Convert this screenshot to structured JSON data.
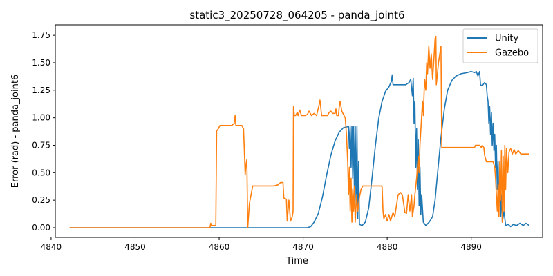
{
  "chart_data": {
    "type": "line",
    "title": "static3_20250728_064205 - panda_joint6",
    "xlabel": "Time",
    "ylabel": "Error (rad) - panda_joint6",
    "xlim": [
      4840.5,
      4898.5
    ],
    "ylim": [
      -0.088,
      1.845
    ],
    "xticks": [
      4840,
      4850,
      4860,
      4870,
      4880,
      4890
    ],
    "xtick_labels": [
      "4840",
      "4850",
      "4860",
      "4870",
      "4880",
      "4890"
    ],
    "yticks": [
      0.0,
      0.25,
      0.5,
      0.75,
      1.0,
      1.25,
      1.5,
      1.75
    ],
    "ytick_labels": [
      "0.00",
      "0.25",
      "0.50",
      "0.75",
      "1.00",
      "1.25",
      "1.50",
      "1.75"
    ],
    "legend_position": "top-right",
    "grid": false,
    "series": [
      {
        "name": "Unity",
        "color": "#1f77b4",
        "points": [
          [
            4842.2,
            0.0
          ],
          [
            4859.0,
            0.0
          ],
          [
            4865.0,
            0.0
          ],
          [
            4870.5,
            0.0
          ],
          [
            4870.9,
            0.01
          ],
          [
            4871.3,
            0.05
          ],
          [
            4871.8,
            0.13
          ],
          [
            4872.3,
            0.28
          ],
          [
            4872.8,
            0.48
          ],
          [
            4873.3,
            0.66
          ],
          [
            4873.8,
            0.79
          ],
          [
            4874.3,
            0.87
          ],
          [
            4874.8,
            0.91
          ],
          [
            4875.4,
            0.92
          ],
          [
            4875.5,
            0.72
          ],
          [
            4875.6,
            0.92
          ],
          [
            4875.7,
            0.55
          ],
          [
            4875.8,
            0.92
          ],
          [
            4875.9,
            0.45
          ],
          [
            4876.0,
            0.92
          ],
          [
            4876.1,
            0.32
          ],
          [
            4876.2,
            0.92
          ],
          [
            4876.3,
            0.2
          ],
          [
            4876.4,
            0.92
          ],
          [
            4876.5,
            0.08
          ],
          [
            4876.6,
            0.6
          ],
          [
            4876.7,
            0.03
          ],
          [
            4877.0,
            0.02
          ],
          [
            4877.4,
            0.05
          ],
          [
            4877.8,
            0.18
          ],
          [
            4878.2,
            0.45
          ],
          [
            4878.6,
            0.75
          ],
          [
            4879.0,
            1.0
          ],
          [
            4879.4,
            1.15
          ],
          [
            4879.8,
            1.24
          ],
          [
            4880.2,
            1.28
          ],
          [
            4880.5,
            1.33
          ],
          [
            4880.6,
            1.39
          ],
          [
            4880.7,
            1.3
          ],
          [
            4881.5,
            1.3
          ],
          [
            4882.2,
            1.3
          ],
          [
            4882.6,
            1.32
          ],
          [
            4882.8,
            1.35
          ],
          [
            4883.0,
            1.2
          ],
          [
            4883.1,
            1.36
          ],
          [
            4883.2,
            0.95
          ],
          [
            4883.3,
            1.15
          ],
          [
            4883.4,
            0.55
          ],
          [
            4883.5,
            0.9
          ],
          [
            4883.6,
            0.35
          ],
          [
            4883.7,
            0.8
          ],
          [
            4883.8,
            0.2
          ],
          [
            4883.9,
            0.55
          ],
          [
            4884.0,
            0.12
          ],
          [
            4884.1,
            0.3
          ],
          [
            4884.3,
            0.05
          ],
          [
            4884.6,
            0.02
          ],
          [
            4885.0,
            0.05
          ],
          [
            4885.4,
            0.1
          ],
          [
            4885.7,
            0.25
          ],
          [
            4886.0,
            0.5
          ],
          [
            4886.4,
            0.82
          ],
          [
            4886.8,
            1.08
          ],
          [
            4887.2,
            1.25
          ],
          [
            4887.7,
            1.34
          ],
          [
            4888.2,
            1.38
          ],
          [
            4888.8,
            1.4
          ],
          [
            4889.5,
            1.41
          ],
          [
            4890.0,
            1.42
          ],
          [
            4890.4,
            1.41
          ],
          [
            4890.6,
            1.42
          ],
          [
            4890.8,
            1.38
          ],
          [
            4891.0,
            1.42
          ],
          [
            4891.1,
            1.3
          ],
          [
            4891.3,
            1.29
          ],
          [
            4891.6,
            1.32
          ],
          [
            4891.8,
            1.3
          ],
          [
            4891.9,
            1.2
          ],
          [
            4892.0,
            1.15
          ],
          [
            4892.1,
            0.95
          ],
          [
            4892.2,
            1.1
          ],
          [
            4892.3,
            0.85
          ],
          [
            4892.4,
            1.05
          ],
          [
            4892.5,
            0.75
          ],
          [
            4892.6,
            0.95
          ],
          [
            4892.7,
            0.7
          ],
          [
            4892.8,
            0.85
          ],
          [
            4892.9,
            0.55
          ],
          [
            4893.0,
            0.75
          ],
          [
            4893.1,
            0.35
          ],
          [
            4893.2,
            0.6
          ],
          [
            4893.3,
            0.2
          ],
          [
            4893.4,
            0.45
          ],
          [
            4893.5,
            0.1
          ],
          [
            4893.6,
            0.3
          ],
          [
            4893.7,
            0.05
          ],
          [
            4893.9,
            0.15
          ],
          [
            4894.1,
            0.02
          ],
          [
            4894.4,
            0.03
          ],
          [
            4894.7,
            0.01
          ],
          [
            4895.0,
            0.03
          ],
          [
            4895.4,
            0.02
          ],
          [
            4895.8,
            0.04
          ],
          [
            4896.2,
            0.02
          ],
          [
            4896.5,
            0.04
          ],
          [
            4896.9,
            0.02
          ]
        ]
      },
      {
        "name": "Gazebo",
        "color": "#ff7f0e",
        "points": [
          [
            4842.2,
            0.0
          ],
          [
            4858.9,
            0.0
          ],
          [
            4859.0,
            0.04
          ],
          [
            4859.1,
            0.02
          ],
          [
            4859.6,
            0.02
          ],
          [
            4859.7,
            0.88
          ],
          [
            4859.9,
            0.9
          ],
          [
            4860.1,
            0.93
          ],
          [
            4861.5,
            0.93
          ],
          [
            4861.8,
            0.95
          ],
          [
            4861.9,
            1.02
          ],
          [
            4862.0,
            0.93
          ],
          [
            4862.7,
            0.93
          ],
          [
            4862.9,
            0.9
          ],
          [
            4863.0,
            0.7
          ],
          [
            4863.1,
            0.48
          ],
          [
            4863.2,
            0.58
          ],
          [
            4863.3,
            0.62
          ],
          [
            4863.4,
            0.0
          ],
          [
            4863.6,
            0.22
          ],
          [
            4863.8,
            0.3
          ],
          [
            4864.0,
            0.38
          ],
          [
            4866.5,
            0.38
          ],
          [
            4867.0,
            0.39
          ],
          [
            4867.3,
            0.41
          ],
          [
            4867.6,
            0.41
          ],
          [
            4867.7,
            0.27
          ],
          [
            4868.0,
            0.26
          ],
          [
            4868.1,
            0.06
          ],
          [
            4868.3,
            0.25
          ],
          [
            4868.5,
            0.06
          ],
          [
            4868.7,
            0.1
          ],
          [
            4868.8,
            0.15
          ],
          [
            4868.85,
            1.1
          ],
          [
            4868.95,
            1.02
          ],
          [
            4869.1,
            1.02
          ],
          [
            4869.3,
            1.05
          ],
          [
            4869.4,
            1.02
          ],
          [
            4869.6,
            1.07
          ],
          [
            4869.8,
            1.02
          ],
          [
            4870.2,
            1.02
          ],
          [
            4870.5,
            1.03
          ],
          [
            4870.7,
            1.06
          ],
          [
            4871.0,
            1.02
          ],
          [
            4871.3,
            1.04
          ],
          [
            4871.6,
            1.02
          ],
          [
            4871.9,
            1.12
          ],
          [
            4872.0,
            1.16
          ],
          [
            4872.2,
            1.02
          ],
          [
            4872.9,
            1.02
          ],
          [
            4873.1,
            1.05
          ],
          [
            4873.3,
            1.06
          ],
          [
            4873.5,
            1.04
          ],
          [
            4873.8,
            1.04
          ],
          [
            4873.9,
            1.08
          ],
          [
            4874.0,
            1.02
          ],
          [
            4874.2,
            1.02
          ],
          [
            4874.3,
            1.1
          ],
          [
            4874.4,
            1.15
          ],
          [
            4874.6,
            1.06
          ],
          [
            4874.8,
            1.03
          ],
          [
            4875.0,
            1.0
          ],
          [
            4875.15,
            0.85
          ],
          [
            4875.3,
            0.6
          ],
          [
            4875.4,
            0.3
          ],
          [
            4875.5,
            0.55
          ],
          [
            4875.6,
            0.15
          ],
          [
            4875.7,
            0.45
          ],
          [
            4875.8,
            0.05
          ],
          [
            4875.9,
            0.35
          ],
          [
            4876.0,
            0.15
          ],
          [
            4876.1,
            0.38
          ],
          [
            4876.2,
            0.05
          ],
          [
            4876.35,
            0.3
          ],
          [
            4876.5,
            0.15
          ],
          [
            4876.7,
            0.28
          ],
          [
            4876.9,
            0.35
          ],
          [
            4877.1,
            0.38
          ],
          [
            4878.5,
            0.38
          ],
          [
            4879.3,
            0.38
          ],
          [
            4879.4,
            0.37
          ],
          [
            4879.5,
            0.15
          ],
          [
            4879.6,
            0.08
          ],
          [
            4879.8,
            0.12
          ],
          [
            4880.0,
            0.06
          ],
          [
            4880.2,
            0.12
          ],
          [
            4880.4,
            0.06
          ],
          [
            4880.7,
            0.14
          ],
          [
            4880.9,
            0.1
          ],
          [
            4881.1,
            0.2
          ],
          [
            4881.3,
            0.3
          ],
          [
            4881.6,
            0.32
          ],
          [
            4881.8,
            0.3
          ],
          [
            4882.0,
            0.2
          ],
          [
            4882.1,
            0.14
          ],
          [
            4882.3,
            0.13
          ],
          [
            4882.5,
            0.3
          ],
          [
            4882.7,
            0.15
          ],
          [
            4882.9,
            0.3
          ],
          [
            4883.0,
            0.1
          ],
          [
            4883.2,
            0.2
          ],
          [
            4883.3,
            0.3
          ],
          [
            4883.5,
            0.45
          ],
          [
            4883.7,
            0.65
          ],
          [
            4883.8,
            0.5
          ],
          [
            4883.9,
            0.75
          ],
          [
            4884.05,
            0.95
          ],
          [
            4884.2,
            1.15
          ],
          [
            4884.3,
            1.02
          ],
          [
            4884.45,
            1.35
          ],
          [
            4884.6,
            1.25
          ],
          [
            4884.7,
            1.5
          ],
          [
            4884.8,
            1.4
          ],
          [
            4884.95,
            1.65
          ],
          [
            4885.1,
            1.45
          ],
          [
            4885.25,
            1.58
          ],
          [
            4885.4,
            1.35
          ],
          [
            4885.55,
            1.52
          ],
          [
            4885.7,
            1.72
          ],
          [
            4885.8,
            1.74
          ],
          [
            4885.85,
            1.3
          ],
          [
            4885.95,
            1.38
          ],
          [
            4886.1,
            1.5
          ],
          [
            4886.3,
            1.6
          ],
          [
            4886.4,
            1.65
          ],
          [
            4886.5,
            0.73
          ],
          [
            4887.5,
            0.73
          ],
          [
            4890.0,
            0.73
          ],
          [
            4890.4,
            0.73
          ],
          [
            4890.5,
            0.75
          ],
          [
            4891.0,
            0.75
          ],
          [
            4891.2,
            0.73
          ],
          [
            4891.3,
            0.75
          ],
          [
            4891.5,
            0.73
          ],
          [
            4891.6,
            0.66
          ],
          [
            4891.8,
            0.6
          ],
          [
            4892.3,
            0.6
          ],
          [
            4892.6,
            0.6
          ],
          [
            4892.8,
            0.55
          ],
          [
            4892.9,
            0.45
          ],
          [
            4893.0,
            0.3
          ],
          [
            4893.1,
            0.15
          ],
          [
            4893.2,
            0.4
          ],
          [
            4893.3,
            0.1
          ],
          [
            4893.4,
            0.6
          ],
          [
            4893.5,
            0.25
          ],
          [
            4893.6,
            0.7
          ],
          [
            4893.7,
            0.05
          ],
          [
            4893.8,
            0.65
          ],
          [
            4893.9,
            0.15
          ],
          [
            4894.0,
            0.75
          ],
          [
            4894.1,
            0.35
          ],
          [
            4894.2,
            0.72
          ],
          [
            4894.35,
            0.5
          ],
          [
            4894.5,
            0.69
          ],
          [
            4894.7,
            0.72
          ],
          [
            4894.9,
            0.67
          ],
          [
            4895.1,
            0.71
          ],
          [
            4895.3,
            0.67
          ],
          [
            4895.6,
            0.7
          ],
          [
            4895.9,
            0.67
          ],
          [
            4896.2,
            0.67
          ],
          [
            4896.6,
            0.67
          ],
          [
            4896.9,
            0.67
          ]
        ]
      }
    ]
  }
}
